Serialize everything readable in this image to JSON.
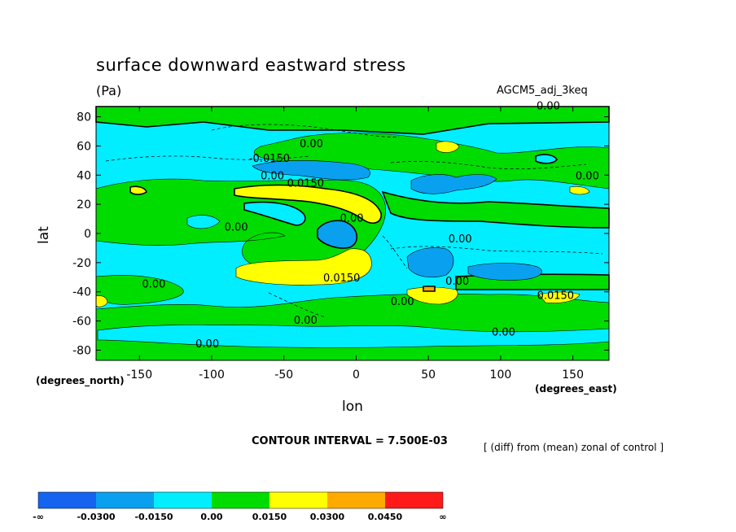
{
  "chart_data": {
    "type": "heatmap",
    "title": "surface downward eastward stress",
    "units": "(Pa)",
    "model_label": "AGCM5_adj_3keq",
    "xlabel": "lon",
    "ylabel": "lat",
    "x_units_note": "(degrees_east)",
    "y_units_note": "(degrees_north)",
    "xlim": [
      -180,
      175
    ],
    "ylim": [
      -87,
      87
    ],
    "x_ticks": [
      -150,
      -100,
      -50,
      0,
      50,
      100,
      150
    ],
    "y_ticks": [
      80,
      60,
      40,
      20,
      0,
      -20,
      -40,
      -60,
      -80
    ],
    "contour_interval": "CONTOUR INTERVAL = 7.500E-03",
    "note": "[ (diff) from (mean) zonal of control ]",
    "contour_labels": [
      {
        "text": "0.00",
        "lon": 133,
        "lat": 85
      },
      {
        "text": "0.00",
        "lon": -31,
        "lat": 59
      },
      {
        "text": "-0.0150",
        "lon": -60,
        "lat": 49
      },
      {
        "text": "0.00",
        "lon": -58,
        "lat": 37
      },
      {
        "text": "0.0150",
        "lon": -35,
        "lat": 32
      },
      {
        "text": "0.00",
        "lon": 160,
        "lat": 37
      },
      {
        "text": "0.00",
        "lon": -3,
        "lat": 8
      },
      {
        "text": "0.00",
        "lon": -83,
        "lat": 2
      },
      {
        "text": "0.00",
        "lon": 72,
        "lat": -6
      },
      {
        "text": "0.0150",
        "lon": -10,
        "lat": -33
      },
      {
        "text": "0.00",
        "lon": 70,
        "lat": -35
      },
      {
        "text": "0.00",
        "lon": -140,
        "lat": -37
      },
      {
        "text": "0.0150",
        "lon": 138,
        "lat": -45
      },
      {
        "text": "0.00",
        "lon": 32,
        "lat": -49
      },
      {
        "text": "0.00",
        "lon": -35,
        "lat": -62
      },
      {
        "text": "0.00",
        "lon": 102,
        "lat": -70
      },
      {
        "text": "0.00",
        "lon": -103,
        "lat": -78
      }
    ],
    "colorbar": {
      "colors": [
        "#1464f0",
        "#0aa0f0",
        "#00eeff",
        "#00dc00",
        "#ffff00",
        "#ffaa00",
        "#ff1a1a"
      ],
      "labels": [
        "-∞",
        "-0.0300",
        "-0.0150",
        "0.00",
        "0.0150",
        "0.0300",
        "0.0450",
        "∞"
      ]
    },
    "colors": {
      "positive_band": "#00dc00",
      "negative_band": "#00eeff",
      "strong_positive": "#ffff00",
      "strong_negative": "#0aa0f0",
      "orange": "#ffaa00"
    }
  }
}
